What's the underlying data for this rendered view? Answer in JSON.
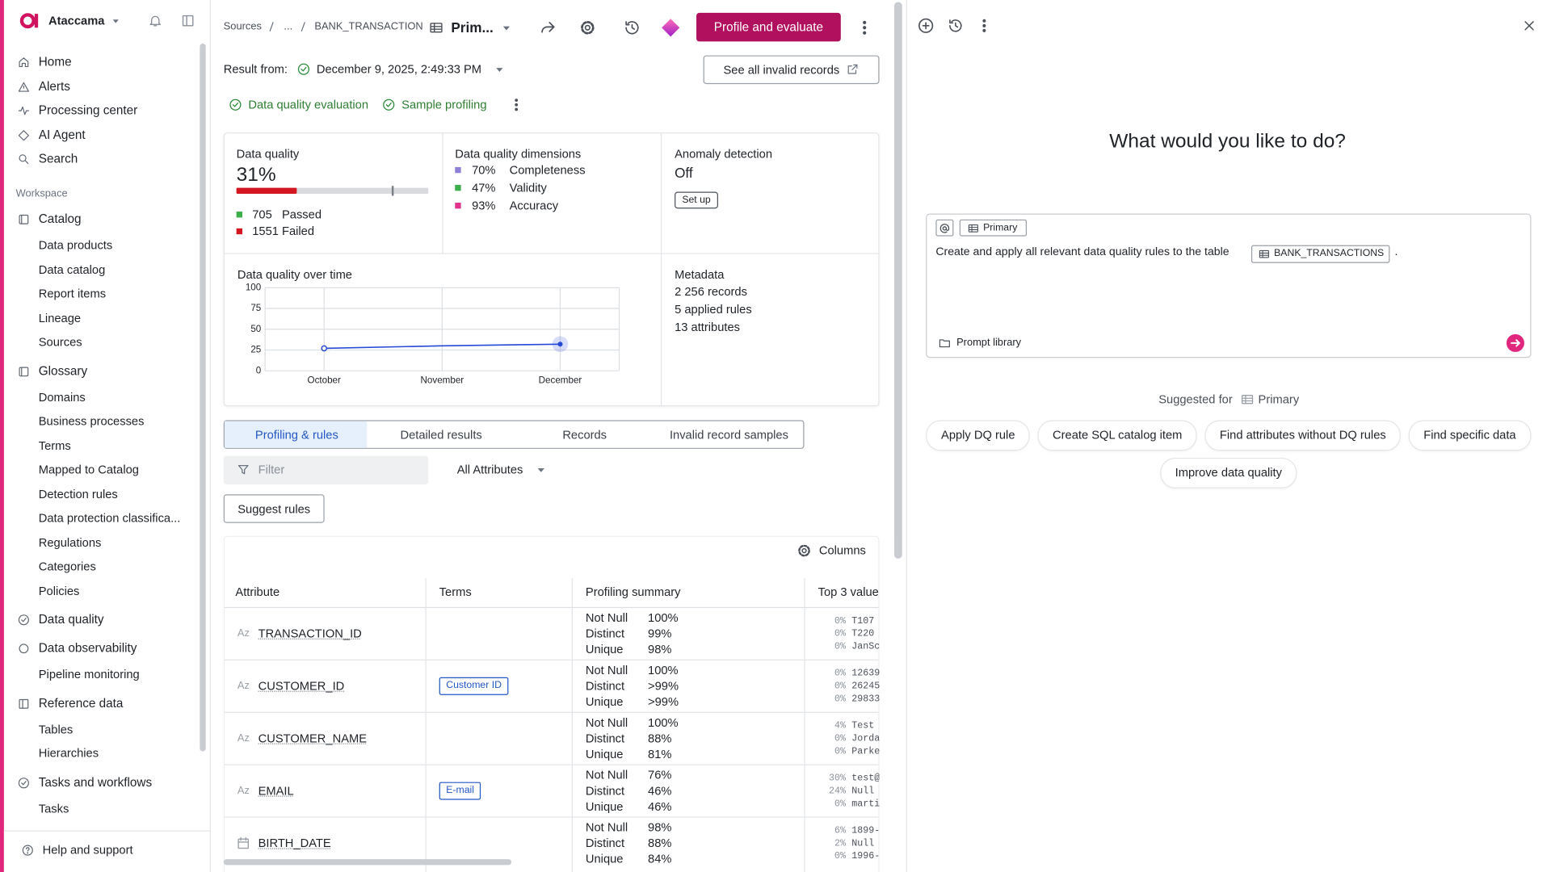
{
  "app": {
    "name": "Ataccama"
  },
  "nav": {
    "top": [
      "Home",
      "Alerts",
      "Processing center",
      "AI Agent",
      "Search"
    ],
    "workspace": "Workspace",
    "groups": [
      {
        "title": "Catalog",
        "items": [
          "Data products",
          "Data catalog",
          "Report items",
          "Lineage",
          "Sources"
        ]
      },
      {
        "title": "Glossary",
        "items": [
          "Domains",
          "Business processes",
          "Terms",
          "Mapped to Catalog",
          "Detection rules",
          "Data protection classifica...",
          "Regulations",
          "Categories",
          "Policies"
        ]
      },
      {
        "title": "Data quality",
        "items": []
      },
      {
        "title": "Data observability",
        "items": [
          "Pipeline monitoring"
        ]
      },
      {
        "title": "Reference data",
        "items": [
          "Tables",
          "Hierarchies"
        ]
      },
      {
        "title": "Tasks and workflows",
        "items": [
          "Tasks"
        ]
      }
    ],
    "help": "Help and support"
  },
  "header": {
    "breadcrumb": [
      "Sources",
      "...",
      "BANK_TRANSACTION"
    ],
    "table_name": "Prim...",
    "primary_button": "Profile and evaluate"
  },
  "result": {
    "label": "Result from:",
    "date": "December 9, 2025, 2:49:33 PM",
    "invalid_button": "See all invalid records",
    "statuses": [
      "Data quality evaluation",
      "Sample profiling"
    ]
  },
  "quality": {
    "title": "Data quality",
    "percent": "31%",
    "passed": 705,
    "passed_label": "Passed",
    "failed": 1551,
    "failed_label": "Failed"
  },
  "dimensions": {
    "title": "Data quality dimensions",
    "items": [
      {
        "value": "70%",
        "name": "Completeness",
        "color": "#8e80d8"
      },
      {
        "value": "47%",
        "name": "Validity",
        "color": "#3cae4a"
      },
      {
        "value": "93%",
        "name": "Accuracy",
        "color": "#e0338a"
      }
    ]
  },
  "anomaly": {
    "title": "Anomaly detection",
    "status": "Off",
    "button": "Set up"
  },
  "chart_data": {
    "type": "line",
    "title": "Data quality over time",
    "categories": [
      "October",
      "November",
      "December"
    ],
    "values": [
      27,
      30,
      32
    ],
    "color": "#2649d6",
    "ylim": [
      0,
      100
    ],
    "yticks": [
      0,
      25,
      50,
      75,
      100
    ],
    "grid": true
  },
  "metadata": {
    "title": "Metadata",
    "lines": [
      "2 256 records",
      "5  applied rules",
      "13 attributes"
    ]
  },
  "tabs": {
    "items": [
      "Profiling & rules",
      "Detailed results",
      "Records",
      "Invalid record samples"
    ],
    "active": 0
  },
  "toolbar": {
    "filter": "Filter",
    "attributes": "All Attributes",
    "suggest": "Suggest rules",
    "columns": "Columns"
  },
  "table": {
    "columns": [
      "Attribute",
      "Terms",
      "Profiling summary",
      "Top 3 value"
    ],
    "rows": [
      {
        "type": "Az",
        "name": "TRANSACTION_ID",
        "profile": [
          {
            "label": "Not Null",
            "value": "100%"
          },
          {
            "label": "Distinct",
            "value": "99%"
          },
          {
            "label": "Unique",
            "value": "98%"
          }
        ],
        "top": [
          {
            "share": "0%",
            "value": "T107"
          },
          {
            "share": "0%",
            "value": "T220"
          },
          {
            "share": "0%",
            "value": "JanSc"
          }
        ]
      },
      {
        "type": "Az",
        "name": "CUSTOMER_ID",
        "term": "Customer ID",
        "profile": [
          {
            "label": "Not Null",
            "value": "100%"
          },
          {
            "label": "Distinct",
            "value": ">99%"
          },
          {
            "label": "Unique",
            "value": ">99%"
          }
        ],
        "top": [
          {
            "share": "0%",
            "value": "12639"
          },
          {
            "share": "0%",
            "value": "26245"
          },
          {
            "share": "0%",
            "value": "29833"
          }
        ]
      },
      {
        "type": "Az",
        "name": "CUSTOMER_NAME",
        "profile": [
          {
            "label": "Not Null",
            "value": "100%"
          },
          {
            "label": "Distinct",
            "value": "88%"
          },
          {
            "label": "Unique",
            "value": "81%"
          }
        ],
        "top": [
          {
            "share": "4%",
            "value": "Test"
          },
          {
            "share": "0%",
            "value": "Jorda"
          },
          {
            "share": "0%",
            "value": "Parke"
          }
        ]
      },
      {
        "type": "Az",
        "name": "EMAIL",
        "term": "E-mail",
        "profile": [
          {
            "label": "Not Null",
            "value": "76%"
          },
          {
            "label": "Distinct",
            "value": "46%"
          },
          {
            "label": "Unique",
            "value": "46%"
          }
        ],
        "top": [
          {
            "share": "30%",
            "value": "test@"
          },
          {
            "share": "24%",
            "value": "Null"
          },
          {
            "share": "0%",
            "value": "marti"
          }
        ]
      },
      {
        "name": "BIRTH_DATE",
        "profile": [
          {
            "label": "Not Null",
            "value": "98%"
          },
          {
            "label": "Distinct",
            "value": "88%"
          },
          {
            "label": "Unique",
            "value": "84%"
          }
        ],
        "top": [
          {
            "share": "6%",
            "value": "1899-"
          },
          {
            "share": "2%",
            "value": "Null"
          },
          {
            "share": "0%",
            "value": "1996-"
          }
        ]
      }
    ]
  },
  "assistant": {
    "question": "What would you like to do?",
    "context_chip": "Primary",
    "prompt": "Create and apply all relevant data quality rules to the table",
    "prompt_table": "BANK_TRANSACTIONS",
    "prompt_end": ".",
    "library": "Prompt library",
    "suggested_label": "Suggested for",
    "suggested_target": "Primary",
    "suggestions": [
      "Apply DQ rule",
      "Create SQL catalog item",
      "Find attributes without DQ rules",
      "Find specific data",
      "Improve data quality"
    ]
  }
}
